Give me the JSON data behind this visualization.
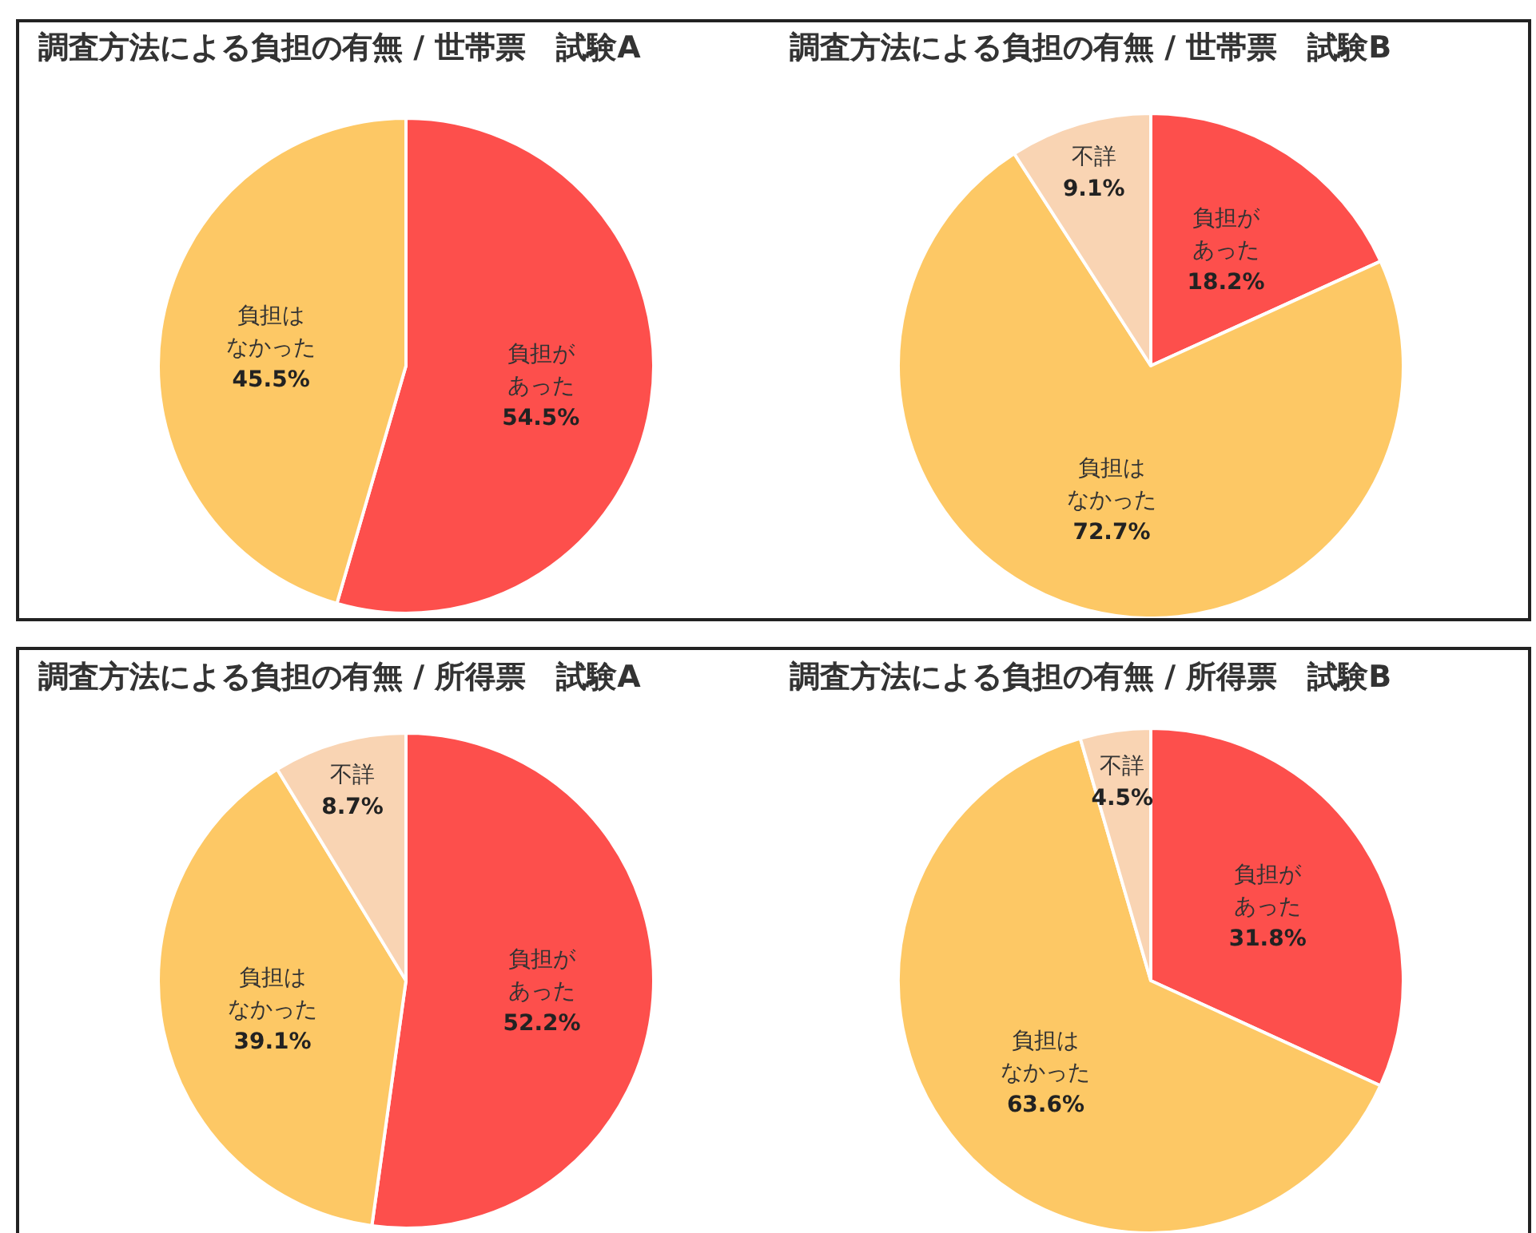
{
  "chart_data": [
    {
      "type": "pie",
      "title": "調査方法による負担の有無 / 世帯票　試験A",
      "categories": [
        "負担があった",
        "負担はなかった"
      ],
      "values": [
        54.5,
        45.5
      ],
      "value_labels": [
        "54.5%",
        "45.5%"
      ],
      "colors": [
        "#fd4f4c",
        "#fdc865"
      ]
    },
    {
      "type": "pie",
      "title": "調査方法による負担の有無 / 世帯票　試験B",
      "categories": [
        "負担があった",
        "負担はなかった",
        "不詳"
      ],
      "values": [
        18.2,
        72.7,
        9.1
      ],
      "value_labels": [
        "18.2%",
        "72.7%",
        "9.1%"
      ],
      "colors": [
        "#fd4f4c",
        "#fdc865",
        "#f9d4b3"
      ]
    },
    {
      "type": "pie",
      "title": "調査方法による負担の有無 / 所得票　試験A",
      "categories": [
        "負担があった",
        "負担はなかった",
        "不詳"
      ],
      "values": [
        52.2,
        39.1,
        8.7
      ],
      "value_labels": [
        "52.2%",
        "39.1%",
        "8.7%"
      ],
      "colors": [
        "#fd4f4c",
        "#fdc865",
        "#f9d4b3"
      ]
    },
    {
      "type": "pie",
      "title": "調査方法による負担の有無 / 所得票　試験B",
      "categories": [
        "負担があった",
        "負担はなかった",
        "不詳"
      ],
      "values": [
        31.8,
        63.6,
        4.5
      ],
      "value_labels": [
        "31.8%",
        "63.6%",
        "4.5%"
      ],
      "colors": [
        "#fd4f4c",
        "#fdc865",
        "#f9d4b3"
      ]
    }
  ]
}
